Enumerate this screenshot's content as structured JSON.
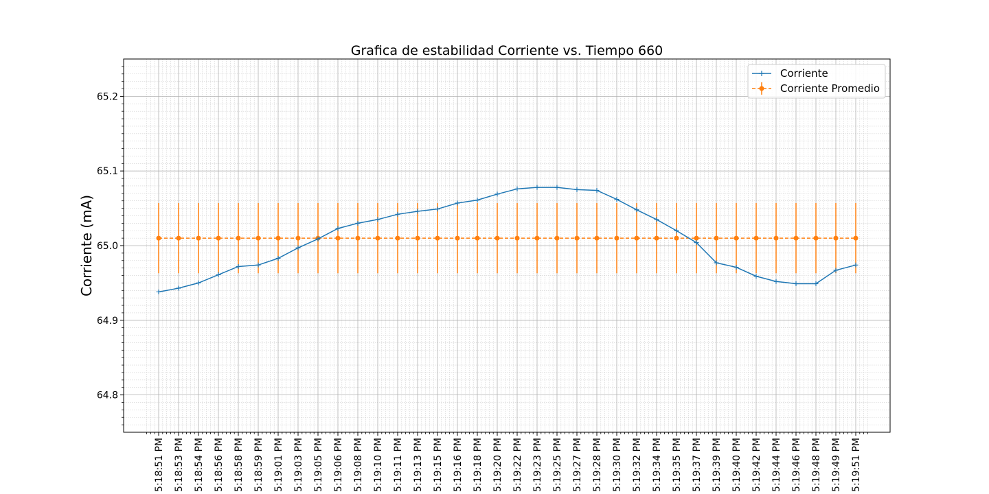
{
  "chart_data": {
    "type": "line",
    "title": "Grafica de estabilidad Corriente vs. Tiempo 660",
    "xlabel": "",
    "ylabel": "Corriente (mA)",
    "ylim": [
      64.75,
      65.25
    ],
    "y_ticks": [
      "64.8",
      "64.9",
      "65.0",
      "65.1",
      "65.2"
    ],
    "grid": true,
    "legend_position": "top-right",
    "categories": [
      "5:18:51 PM",
      "5:18:53 PM",
      "5:18:54 PM",
      "5:18:56 PM",
      "5:18:58 PM",
      "5:18:59 PM",
      "5:19:01 PM",
      "5:19:03 PM",
      "5:19:05 PM",
      "5:19:06 PM",
      "5:19:08 PM",
      "5:19:10 PM",
      "5:19:11 PM",
      "5:19:13 PM",
      "5:19:15 PM",
      "5:19:16 PM",
      "5:19:18 PM",
      "5:19:20 PM",
      "5:19:22 PM",
      "5:19:23 PM",
      "5:19:25 PM",
      "5:19:27 PM",
      "5:19:28 PM",
      "5:19:30 PM",
      "5:19:32 PM",
      "5:19:34 PM",
      "5:19:35 PM",
      "5:19:37 PM",
      "5:19:39 PM",
      "5:19:40 PM",
      "5:19:42 PM",
      "5:19:44 PM",
      "5:19:46 PM",
      "5:19:48 PM",
      "5:19:49 PM",
      "5:19:51 PM"
    ],
    "series": [
      {
        "name": "Corriente",
        "color": "#1f77b4",
        "marker": "plus",
        "values": [
          64.938,
          64.943,
          64.95,
          64.961,
          64.972,
          64.974,
          64.983,
          64.997,
          65.009,
          65.023,
          65.03,
          65.035,
          65.042,
          65.046,
          65.049,
          65.057,
          65.061,
          65.069,
          65.076,
          65.078,
          65.078,
          65.075,
          65.074,
          65.062,
          65.048,
          65.035,
          65.02,
          65.004,
          64.977,
          64.971,
          64.959,
          64.952,
          64.949,
          64.949,
          64.967,
          64.974
        ]
      },
      {
        "name": "Corriente Promedio",
        "color": "#ff7f0e",
        "marker": "circle",
        "value": 65.01,
        "error": 0.047
      }
    ]
  }
}
